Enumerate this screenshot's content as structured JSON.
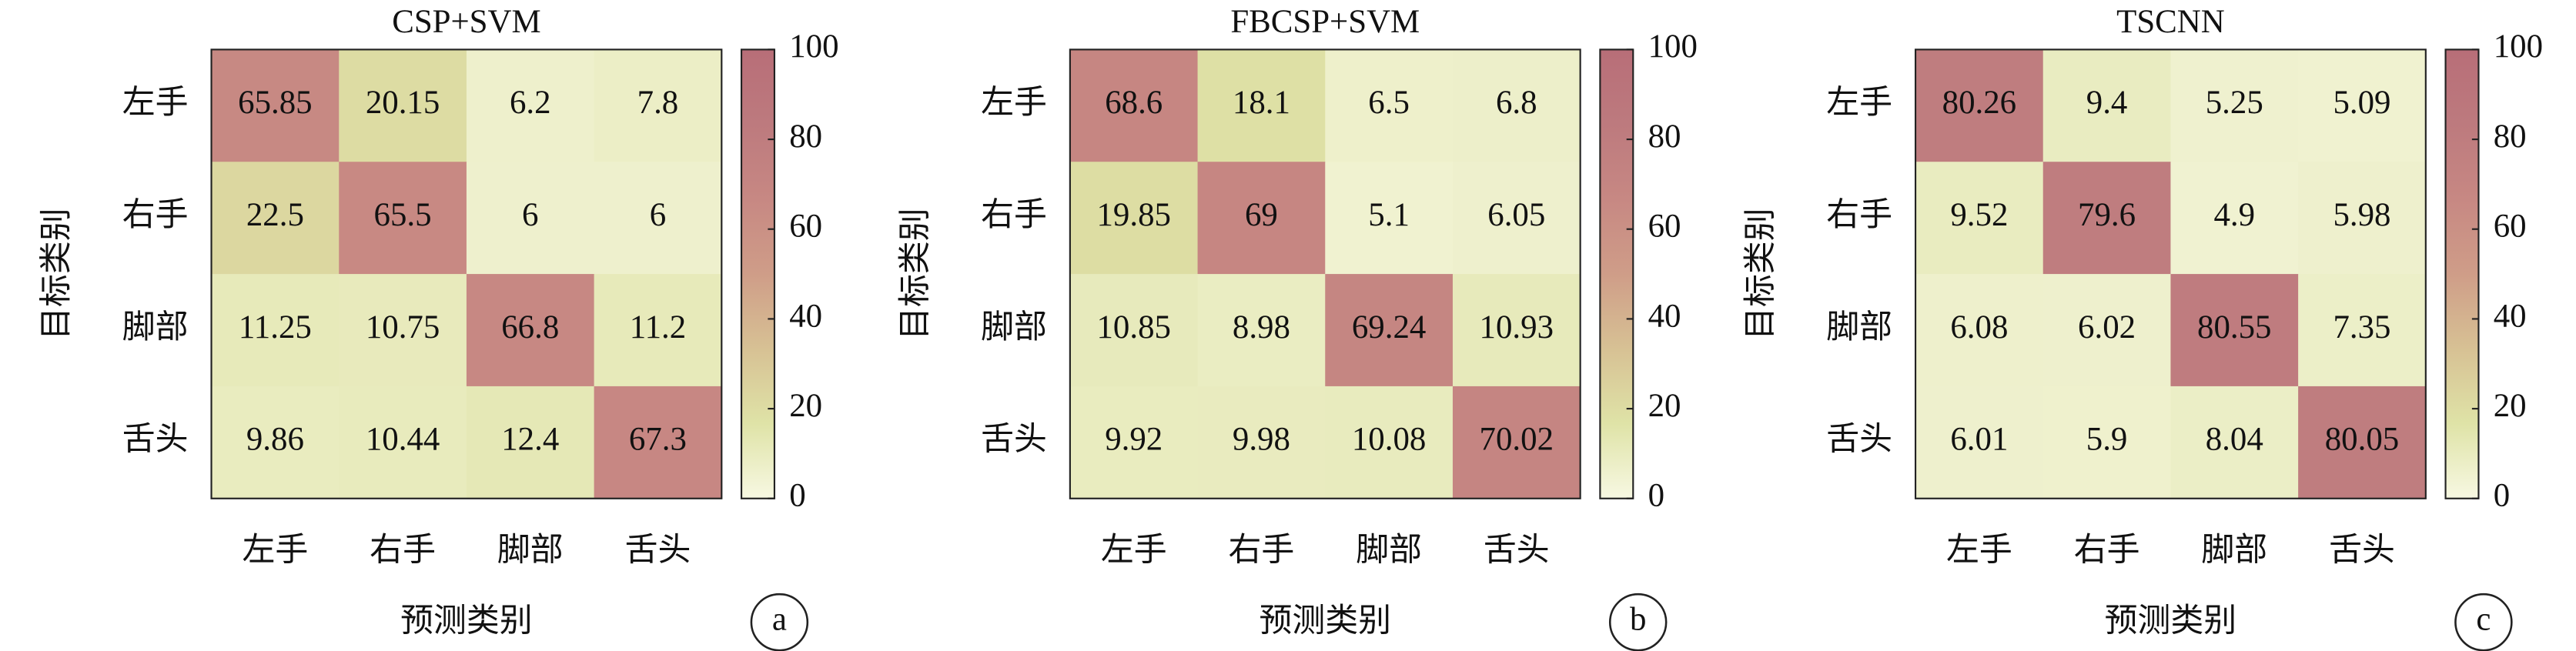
{
  "chart_data": [
    {
      "type": "heatmap",
      "title": "CSP+SVM",
      "x_label": "预测类别",
      "y_label": "目标类别",
      "panel_label": "a",
      "x_categories": [
        "左手",
        "右手",
        "脚部",
        "舌头"
      ],
      "y_categories": [
        "左手",
        "右手",
        "脚部",
        "舌头"
      ],
      "values": [
        [
          65.85,
          20.15,
          6.2,
          7.8
        ],
        [
          22.5,
          65.5,
          6,
          6
        ],
        [
          11.25,
          10.75,
          66.8,
          11.2
        ],
        [
          9.86,
          10.44,
          12.4,
          67.3
        ]
      ],
      "zlim": [
        0,
        100
      ],
      "zticks": [
        0,
        20,
        40,
        60,
        80,
        100
      ],
      "colormap": [
        "#f7f8e2",
        "#dfe3a7",
        "#d7c194",
        "#cf9d88",
        "#c78883",
        "#bd7a7e",
        "#b86e78"
      ]
    },
    {
      "type": "heatmap",
      "title": "FBCSP+SVM",
      "x_label": "预测类别",
      "y_label": "目标类别",
      "panel_label": "b",
      "x_categories": [
        "左手",
        "右手",
        "脚部",
        "舌头"
      ],
      "y_categories": [
        "左手",
        "右手",
        "脚部",
        "舌头"
      ],
      "values": [
        [
          68.6,
          18.1,
          6.5,
          6.8
        ],
        [
          19.85,
          69,
          5.1,
          6.05
        ],
        [
          10.85,
          8.98,
          69.24,
          10.93
        ],
        [
          9.92,
          9.98,
          10.08,
          70.02
        ]
      ],
      "zlim": [
        0,
        100
      ],
      "zticks": [
        0,
        20,
        40,
        60,
        80,
        100
      ],
      "colormap": [
        "#f7f8e2",
        "#dfe3a7",
        "#d7c194",
        "#cf9d88",
        "#c78883",
        "#bd7a7e",
        "#b86e78"
      ]
    },
    {
      "type": "heatmap",
      "title": "TSCNN",
      "x_label": "预测类别",
      "y_label": "目标类别",
      "panel_label": "c",
      "x_categories": [
        "左手",
        "右手",
        "脚部",
        "舌头"
      ],
      "y_categories": [
        "左手",
        "右手",
        "脚部",
        "舌头"
      ],
      "values": [
        [
          80.26,
          9.4,
          5.25,
          5.09
        ],
        [
          9.52,
          79.6,
          4.9,
          5.98
        ],
        [
          6.08,
          6.02,
          80.55,
          7.35
        ],
        [
          6.01,
          5.9,
          8.04,
          80.05
        ]
      ],
      "zlim": [
        0,
        100
      ],
      "zticks": [
        0,
        20,
        40,
        60,
        80,
        100
      ],
      "colormap": [
        "#f7f8e2",
        "#dfe3a7",
        "#d7c194",
        "#cf9d88",
        "#c78883",
        "#bd7a7e",
        "#b86e78"
      ]
    }
  ]
}
